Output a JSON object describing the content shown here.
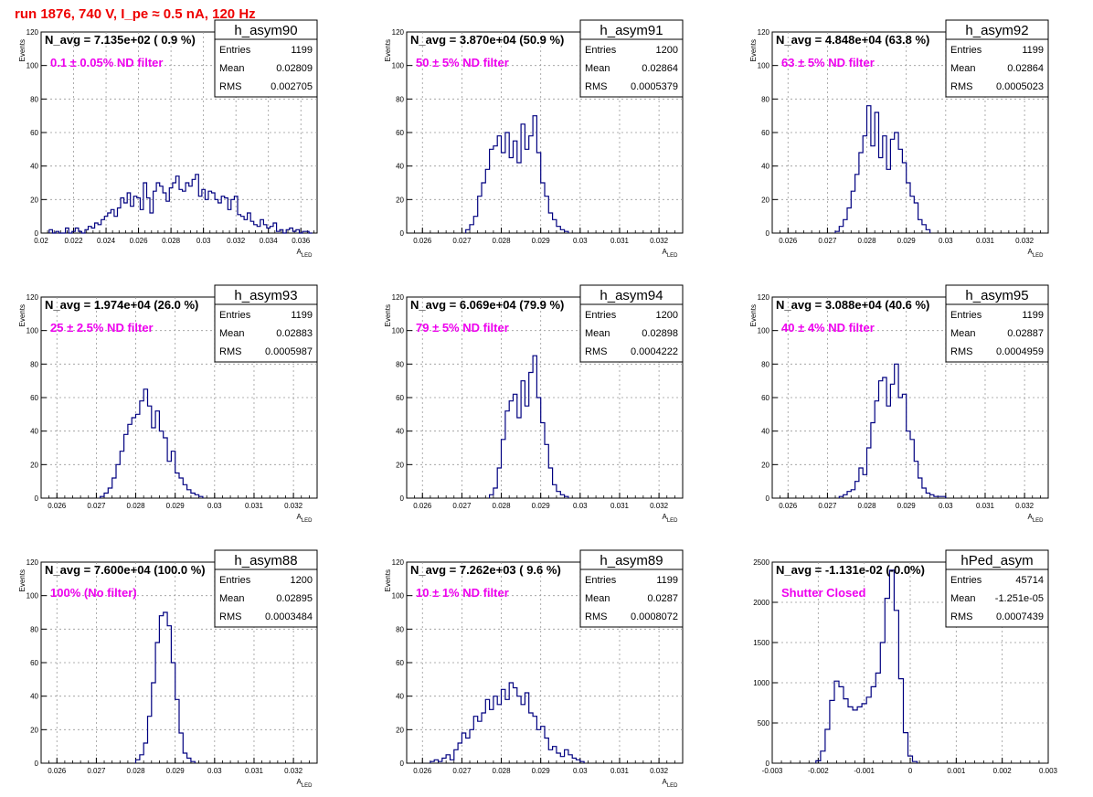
{
  "page": {
    "run_title": "run 1876,   740 V, I_pe ≈ 0.5 nA, 120 Hz",
    "title_color": "#ee0000",
    "note_color": "#ee00ee",
    "hist_color": "#000080"
  },
  "chart_data": [
    {
      "type": "bar",
      "hist": "h_asym90",
      "navg": "N_avg = 7.135e+02 ( 0.9 %)",
      "note": "0.1 ± 0.05% ND filter",
      "stats": {
        "Entries": "1199",
        "Mean": "0.02809",
        "RMS": "0.002705"
      },
      "xlabel": "A_LED",
      "ylabel": "Events",
      "xlim": [
        0.02,
        0.037
      ],
      "ylim": [
        0,
        120
      ],
      "xticks": [
        "0.02",
        "0.022",
        "0.024",
        "0.026",
        "0.028",
        "0.03",
        "0.032",
        "0.034",
        "0.036"
      ],
      "xtick_values": [
        0.02,
        0.022,
        0.024,
        0.026,
        0.028,
        0.03,
        0.032,
        0.034,
        0.036
      ],
      "yticks": [
        "0",
        "20",
        "40",
        "60",
        "80",
        "100",
        "120"
      ],
      "bin_start": 0.0205,
      "bin_width": 0.0002,
      "values": [
        2,
        0,
        1,
        0,
        0,
        3,
        0,
        1,
        3,
        1,
        0,
        2,
        4,
        3,
        6,
        5,
        8,
        10,
        12,
        14,
        10,
        15,
        21,
        18,
        24,
        16,
        22,
        21,
        14,
        30,
        21,
        12,
        25,
        30,
        28,
        24,
        19,
        27,
        30,
        34,
        26,
        25,
        30,
        28,
        32,
        35,
        22,
        26,
        20,
        25,
        24,
        20,
        18,
        22,
        21,
        14,
        20,
        22,
        11,
        10,
        8,
        12,
        7,
        5,
        4,
        8,
        5,
        3,
        4,
        6,
        1,
        2,
        0,
        2,
        3,
        1,
        2,
        0,
        1,
        1,
        0
      ]
    },
    {
      "type": "bar",
      "hist": "h_asym91",
      "navg": "N_avg = 3.870e+04 (50.9 %)",
      "note": "50 ± 5% ND filter",
      "stats": {
        "Entries": "1200",
        "Mean": "0.02864",
        "RMS": "0.0005379"
      },
      "xlabel": "A_LED",
      "ylabel": "Events",
      "xlim": [
        0.0256,
        0.0326
      ],
      "ylim": [
        0,
        120
      ],
      "xticks": [
        "0.026",
        "0.027",
        "0.028",
        "0.029",
        "0.03",
        "0.031",
        "0.032"
      ],
      "xtick_values": [
        0.026,
        0.027,
        0.028,
        0.029,
        0.03,
        0.031,
        0.032
      ],
      "yticks": [
        "0",
        "20",
        "40",
        "60",
        "80",
        "100",
        "120"
      ],
      "bin_start": 0.0271,
      "bin_width": 0.0001,
      "values": [
        2,
        5,
        10,
        22,
        30,
        38,
        50,
        52,
        58,
        48,
        60,
        45,
        55,
        42,
        65,
        50,
        58,
        70,
        48,
        30,
        22,
        12,
        8,
        4,
        2,
        1
      ]
    },
    {
      "type": "bar",
      "hist": "h_asym92",
      "navg": "N_avg = 4.848e+04 (63.8 %)",
      "note": "63 ± 5% ND filter",
      "stats": {
        "Entries": "1199",
        "Mean": "0.02864",
        "RMS": "0.0005023"
      },
      "xlabel": "A_LED",
      "ylabel": "Events",
      "xlim": [
        0.0256,
        0.0326
      ],
      "ylim": [
        0,
        120
      ],
      "xticks": [
        "0.026",
        "0.027",
        "0.028",
        "0.029",
        "0.03",
        "0.031",
        "0.032"
      ],
      "xtick_values": [
        0.026,
        0.027,
        0.028,
        0.029,
        0.03,
        0.031,
        0.032
      ],
      "yticks": [
        "0",
        "20",
        "40",
        "60",
        "80",
        "100",
        "120"
      ],
      "bin_start": 0.0272,
      "bin_width": 0.0001,
      "values": [
        1,
        4,
        8,
        15,
        25,
        35,
        48,
        58,
        76,
        52,
        72,
        45,
        58,
        38,
        56,
        60,
        50,
        42,
        30,
        22,
        18,
        8,
        5,
        2
      ]
    },
    {
      "type": "bar",
      "hist": "h_asym93",
      "navg": "N_avg = 1.974e+04 (26.0 %)",
      "note": "25 ± 2.5% ND filter",
      "stats": {
        "Entries": "1199",
        "Mean": "0.02883",
        "RMS": "0.0005987"
      },
      "xlabel": "A_LED",
      "ylabel": "Events",
      "xlim": [
        0.0256,
        0.0326
      ],
      "ylim": [
        0,
        120
      ],
      "xticks": [
        "0.026",
        "0.027",
        "0.028",
        "0.029",
        "0.03",
        "0.031",
        "0.032"
      ],
      "xtick_values": [
        0.026,
        0.027,
        0.028,
        0.029,
        0.03,
        0.031,
        0.032
      ],
      "yticks": [
        "0",
        "20",
        "40",
        "60",
        "80",
        "100",
        "120"
      ],
      "bin_start": 0.0271,
      "bin_width": 0.0001,
      "values": [
        1,
        3,
        6,
        12,
        20,
        28,
        38,
        44,
        48,
        50,
        58,
        65,
        55,
        42,
        52,
        40,
        36,
        22,
        28,
        15,
        12,
        8,
        5,
        3,
        2,
        1
      ]
    },
    {
      "type": "bar",
      "hist": "h_asym94",
      "navg": "N_avg = 6.069e+04 (79.9 %)",
      "note": "79 ± 5% ND filter",
      "stats": {
        "Entries": "1200",
        "Mean": "0.02898",
        "RMS": "0.0004222"
      },
      "xlabel": "A_LED",
      "ylabel": "Events",
      "xlim": [
        0.0256,
        0.0326
      ],
      "ylim": [
        0,
        120
      ],
      "xticks": [
        "0.026",
        "0.027",
        "0.028",
        "0.029",
        "0.03",
        "0.031",
        "0.032"
      ],
      "xtick_values": [
        0.026,
        0.027,
        0.028,
        0.029,
        0.03,
        0.031,
        0.032
      ],
      "yticks": [
        "0",
        "20",
        "40",
        "60",
        "80",
        "100",
        "120"
      ],
      "bin_start": 0.0277,
      "bin_width": 0.0001,
      "values": [
        2,
        6,
        18,
        35,
        52,
        58,
        62,
        48,
        70,
        55,
        75,
        85,
        60,
        45,
        32,
        18,
        8,
        4,
        2,
        1
      ]
    },
    {
      "type": "bar",
      "hist": "h_asym95",
      "navg": "N_avg = 3.088e+04 (40.6 %)",
      "note": "40 ± 4% ND filter",
      "stats": {
        "Entries": "1199",
        "Mean": "0.02887",
        "RMS": "0.0004959"
      },
      "xlabel": "A_LED",
      "ylabel": "Events",
      "xlim": [
        0.0256,
        0.0326
      ],
      "ylim": [
        0,
        120
      ],
      "xticks": [
        "0.026",
        "0.027",
        "0.028",
        "0.029",
        "0.03",
        "0.031",
        "0.032"
      ],
      "xtick_values": [
        0.026,
        0.027,
        0.028,
        0.029,
        0.03,
        0.031,
        0.032
      ],
      "yticks": [
        "0",
        "20",
        "40",
        "60",
        "80",
        "100",
        "120"
      ],
      "bin_start": 0.0273,
      "bin_width": 0.0001,
      "values": [
        1,
        2,
        4,
        5,
        10,
        18,
        14,
        30,
        45,
        58,
        70,
        72,
        55,
        68,
        80,
        60,
        62,
        40,
        35,
        22,
        12,
        6,
        3,
        2,
        1,
        1,
        1
      ]
    },
    {
      "type": "bar",
      "hist": "h_asym88",
      "navg": "N_avg = 7.600e+04 (100.0 %)",
      "note": "100% (No filter)",
      "stats": {
        "Entries": "1200",
        "Mean": "0.02895",
        "RMS": "0.0003484"
      },
      "xlabel": "A_LED",
      "ylabel": "Events",
      "xlim": [
        0.0256,
        0.0326
      ],
      "ylim": [
        0,
        120
      ],
      "xticks": [
        "0.026",
        "0.027",
        "0.028",
        "0.029",
        "0.03",
        "0.031",
        "0.032"
      ],
      "xtick_values": [
        0.026,
        0.027,
        0.028,
        0.029,
        0.03,
        0.031,
        0.032
      ],
      "yticks": [
        "0",
        "20",
        "40",
        "60",
        "80",
        "100",
        "120"
      ],
      "bin_start": 0.028,
      "bin_width": 0.0001,
      "values": [
        2,
        5,
        12,
        28,
        48,
        72,
        88,
        90,
        82,
        60,
        38,
        18,
        6,
        3,
        1
      ]
    },
    {
      "type": "bar",
      "hist": "h_asym89",
      "navg": "N_avg = 7.262e+03 ( 9.6 %)",
      "note": "10 ± 1% ND filter",
      "stats": {
        "Entries": "1199",
        "Mean": "0.0287",
        "RMS": "0.0008072"
      },
      "xlabel": "A_LED",
      "ylabel": "Events",
      "xlim": [
        0.0256,
        0.0326
      ],
      "ylim": [
        0,
        120
      ],
      "xticks": [
        "0.026",
        "0.027",
        "0.028",
        "0.029",
        "0.03",
        "0.031",
        "0.032"
      ],
      "xtick_values": [
        0.026,
        0.027,
        0.028,
        0.029,
        0.03,
        0.031,
        0.032
      ],
      "yticks": [
        "0",
        "20",
        "40",
        "60",
        "80",
        "100",
        "120"
      ],
      "bin_start": 0.0262,
      "bin_width": 0.0001,
      "values": [
        1,
        2,
        1,
        3,
        5,
        2,
        8,
        12,
        18,
        15,
        20,
        28,
        25,
        30,
        38,
        32,
        40,
        35,
        44,
        38,
        48,
        45,
        40,
        35,
        42,
        30,
        28,
        20,
        22,
        15,
        8,
        10,
        6,
        4,
        8,
        5,
        3,
        2,
        1
      ]
    },
    {
      "type": "bar",
      "hist": "hPed_asym",
      "navg": "N_avg = -1.131e-02 (-0.0%)",
      "note": "Shutter Closed",
      "stats": {
        "Entries": "45714",
        "Mean": "-1.251e-05",
        "RMS": "0.0007439"
      },
      "xlabel": "",
      "ylabel": "",
      "xlim": [
        -0.003,
        0.003
      ],
      "ylim": [
        0,
        2500
      ],
      "xticks": [
        "-0.003",
        "-0.002",
        "-0.001",
        "0",
        "0.001",
        "0.002",
        "0.003"
      ],
      "xtick_values": [
        -0.003,
        -0.002,
        -0.001,
        0,
        0.001,
        0.002,
        0.003
      ],
      "yticks": [
        "0",
        "500",
        "1000",
        "1500",
        "2000",
        "2500"
      ],
      "bin_start": -0.00205,
      "bin_width": 0.0001,
      "values": [
        30,
        150,
        420,
        780,
        1020,
        950,
        800,
        700,
        660,
        700,
        740,
        820,
        950,
        1120,
        1500,
        2050,
        2400,
        1900,
        1050,
        380,
        90,
        20
      ]
    }
  ]
}
